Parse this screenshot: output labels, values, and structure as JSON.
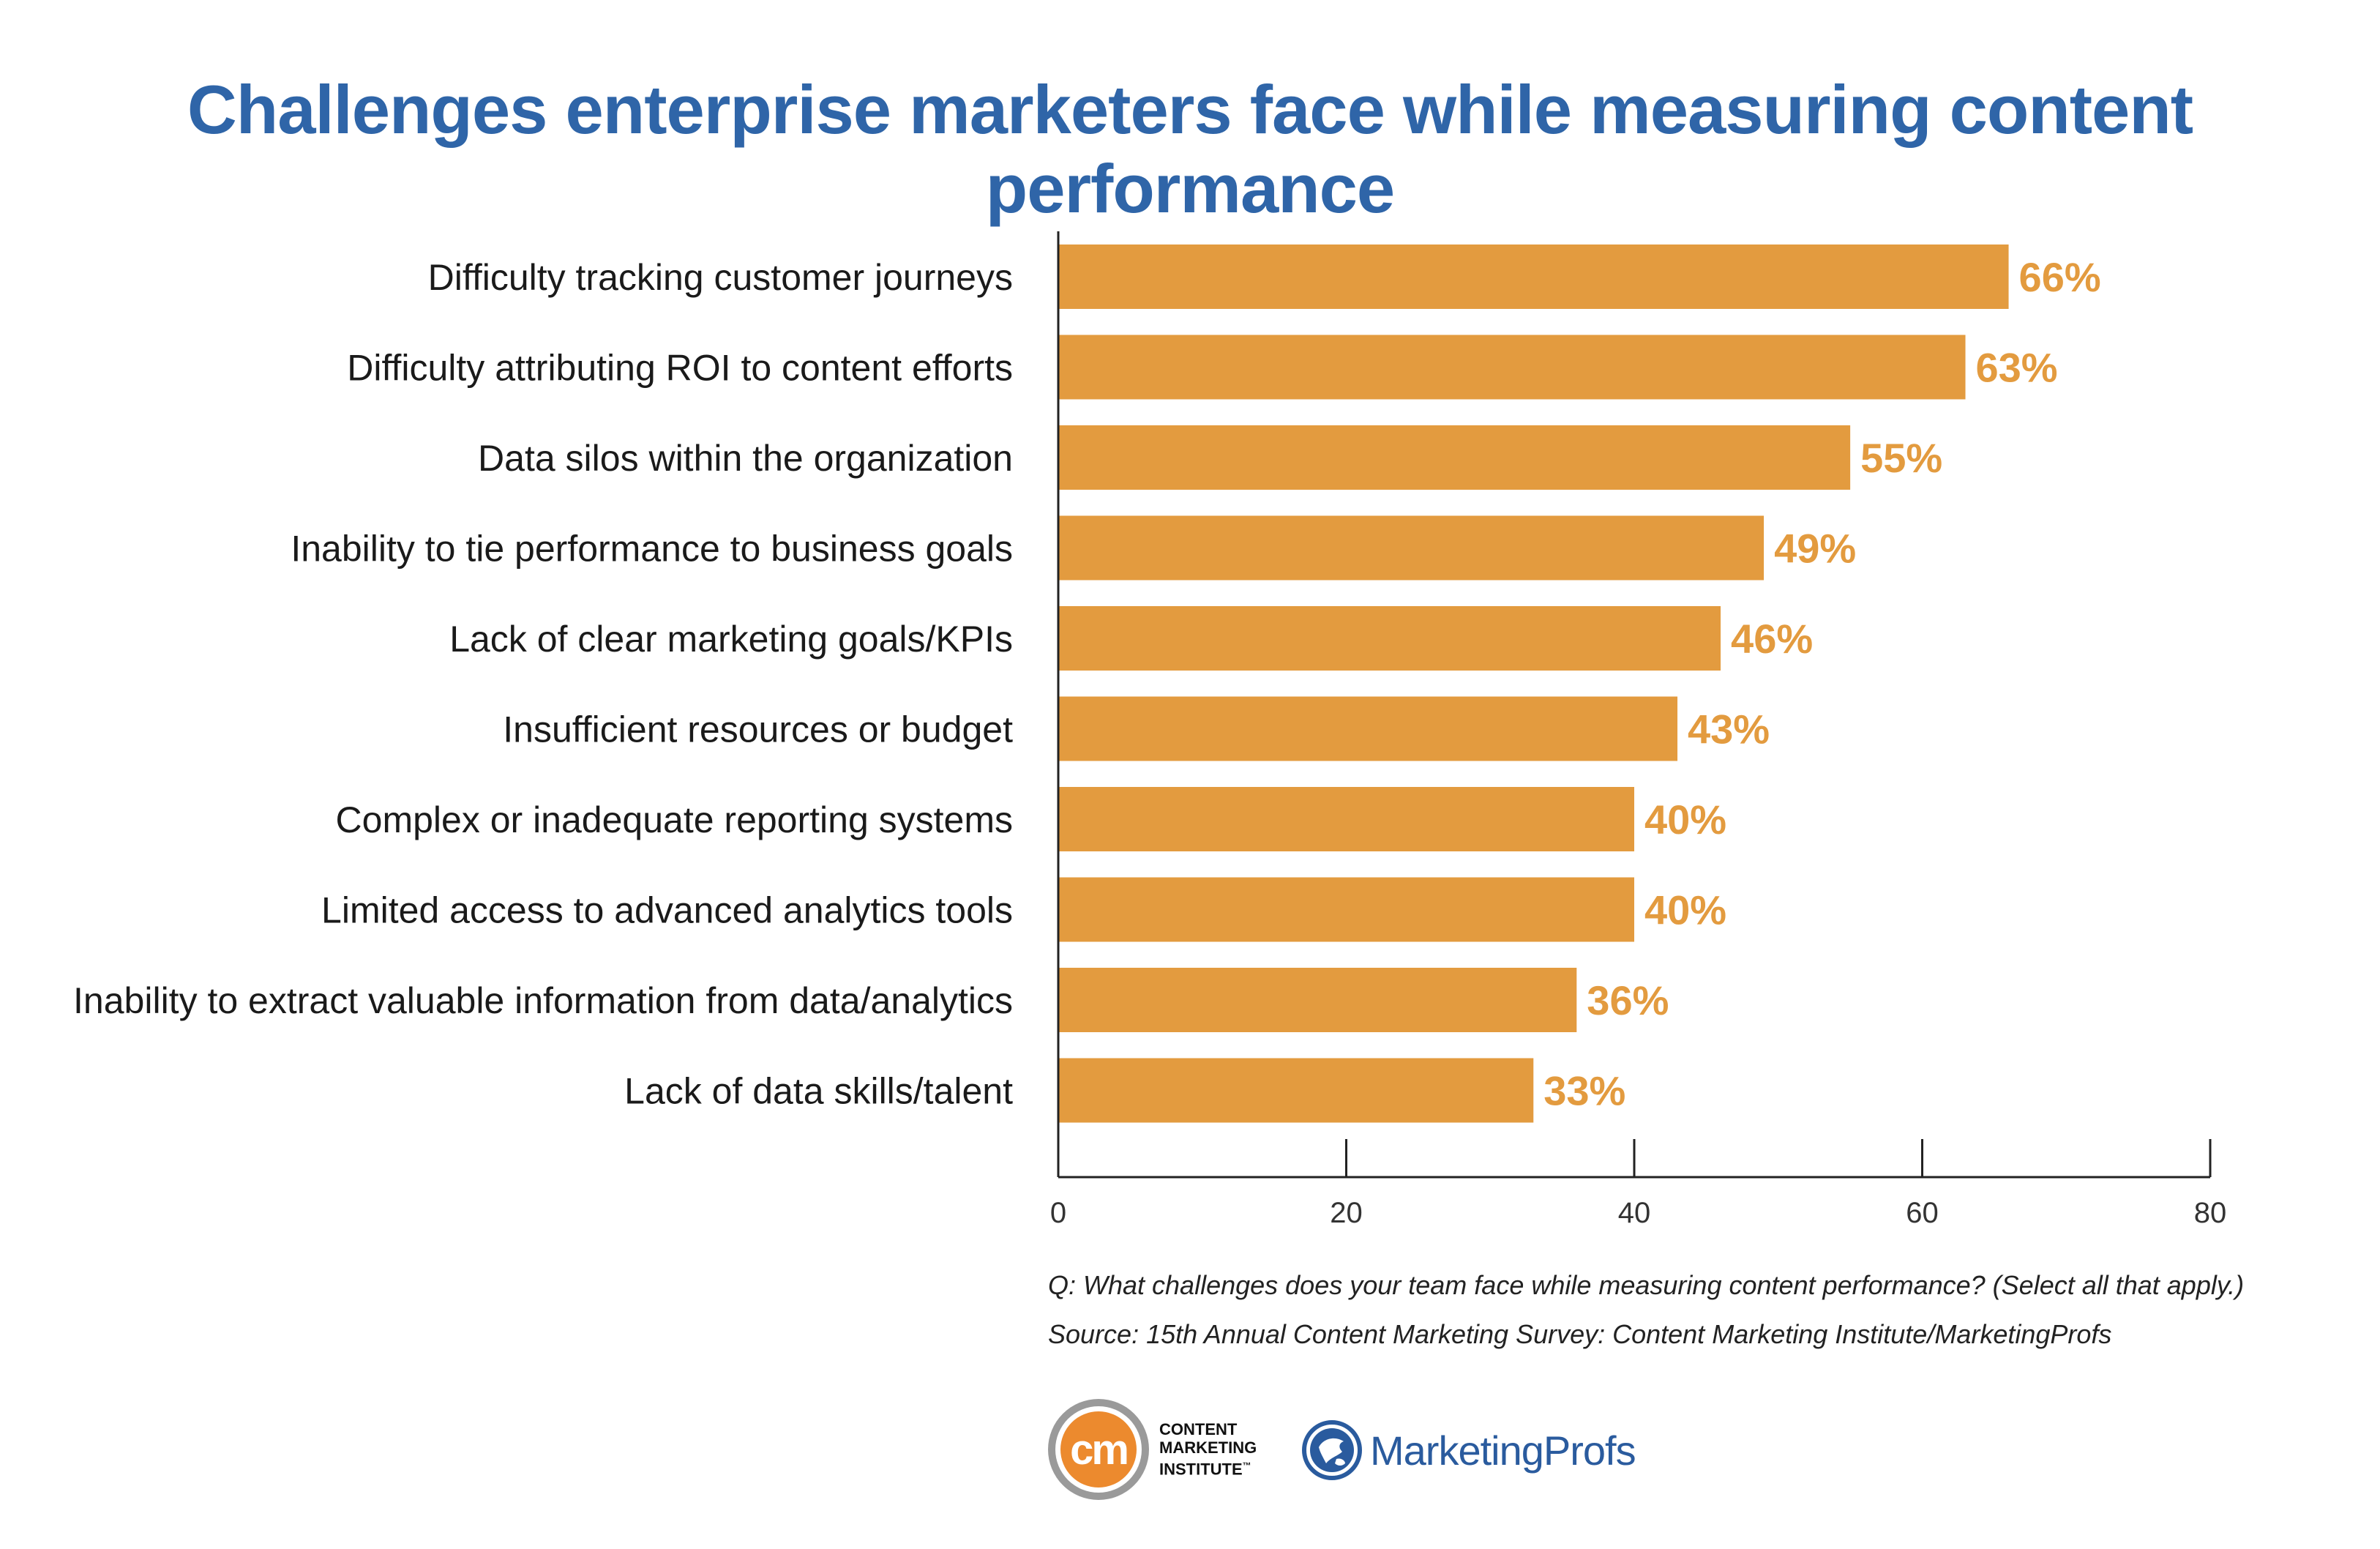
{
  "chart_data": {
    "type": "bar",
    "orientation": "horizontal",
    "title": "Challenges enterprise marketers face while measuring content performance",
    "categories": [
      "Difficulty tracking customer journeys",
      "Difficulty attributing ROI to content efforts",
      "Data silos within the organization",
      "Inability to tie performance to business goals",
      "Lack of clear marketing goals/KPIs",
      "Insufficient resources or budget",
      "Complex or inadequate reporting systems",
      "Limited access to advanced analytics tools",
      "Inability to extract valuable information from data/analytics",
      "Lack of data skills/talent"
    ],
    "values": [
      66,
      63,
      55,
      49,
      46,
      43,
      40,
      40,
      36,
      33
    ],
    "value_labels": [
      "66%",
      "63%",
      "55%",
      "49%",
      "46%",
      "43%",
      "40%",
      "40%",
      "36%",
      "33%"
    ],
    "xlim": [
      0,
      80
    ],
    "xticks": [
      0,
      20,
      40,
      60,
      80
    ],
    "xtick_labels": [
      "0",
      "20",
      "40",
      "60",
      "80"
    ],
    "xlabel": "",
    "ylabel": "",
    "grid": false,
    "legend": "none"
  },
  "colors": {
    "bar": "#e39b3f",
    "value_label": "#e39b3f",
    "title": "#2f65a8",
    "axis": "#222222"
  },
  "footnotes": {
    "question": "Q: What challenges does your team face while measuring content performance? (Select all that apply.)",
    "source": "Source: 15th Annual Content Marketing Survey: Content Marketing Institute/MarketingProfs"
  },
  "logos": {
    "cmi": {
      "monogram": "cm",
      "line1": "CONTENT",
      "line2": "MARKETING",
      "line3": "INSTITUTE",
      "trademark": "™"
    },
    "marketingprofs": {
      "icon": "globe-icon",
      "text": "MarketingProfs"
    }
  }
}
